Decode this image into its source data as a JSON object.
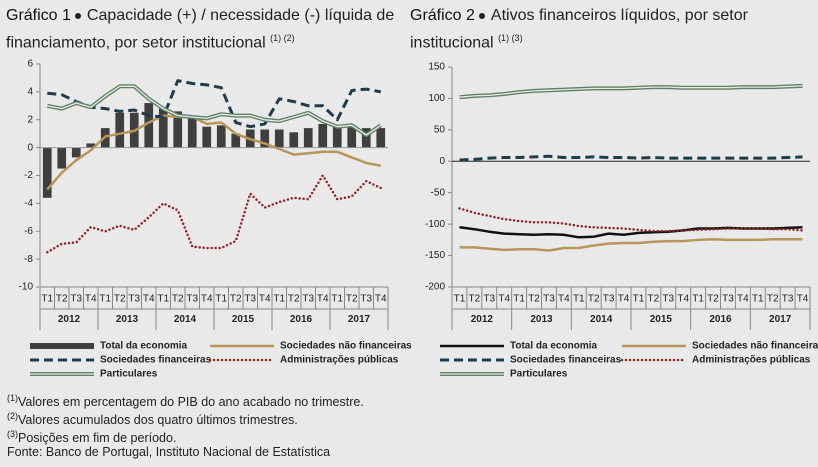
{
  "chart_data": [
    {
      "type": "combo",
      "title": "Gráfico 1",
      "subtitle": "Capacidade (+) / necessidade (-) líquida de financiamento, por setor institucional",
      "title_refs": "(1) (2)",
      "categories": [
        "T1",
        "T2",
        "T3",
        "T4",
        "T1",
        "T2",
        "T3",
        "T4",
        "T1",
        "T2",
        "T3",
        "T4",
        "T1",
        "T2",
        "T3",
        "T4",
        "T1",
        "T2",
        "T3",
        "T4",
        "T1",
        "T2",
        "T3",
        "T4"
      ],
      "years": [
        "2012",
        "2013",
        "2014",
        "2015",
        "2016",
        "2017"
      ],
      "ylim": [
        -10,
        6
      ],
      "yticks": [
        6,
        4,
        2,
        0,
        -2,
        -4,
        -6,
        -8,
        -10
      ],
      "series": [
        {
          "name": "Total da economia",
          "kind": "bar",
          "color": "#3f3f3f",
          "values": [
            -3.6,
            -1.5,
            -0.7,
            0.3,
            1.4,
            2.5,
            2.5,
            3.2,
            2.8,
            2.6,
            2.1,
            1.5,
            1.6,
            1.0,
            1.3,
            1.3,
            1.3,
            1.1,
            1.4,
            1.7,
            1.6,
            1.6,
            1.4,
            1.4
          ]
        },
        {
          "name": "Sociedades não financeiras",
          "kind": "line",
          "style": "solid",
          "color": "#b8965a",
          "values": [
            -3.0,
            -1.8,
            -0.9,
            -0.2,
            0.8,
            1.0,
            1.2,
            1.8,
            2.3,
            2.2,
            2.2,
            1.7,
            1.8,
            1.0,
            0.6,
            0.3,
            -0.1,
            -0.5,
            -0.4,
            -0.3,
            -0.3,
            -0.7,
            -1.1,
            -1.3
          ]
        },
        {
          "name": "Sociedades financeiras",
          "kind": "line",
          "style": "dashed",
          "color": "#1e3d4c",
          "values": [
            3.9,
            3.8,
            3.3,
            2.9,
            2.8,
            2.6,
            2.7,
            2.3,
            2.2,
            4.8,
            4.6,
            4.5,
            4.3,
            1.8,
            1.5,
            1.7,
            3.5,
            3.3,
            3.0,
            3.0,
            2.0,
            4.1,
            4.2,
            4.0
          ]
        },
        {
          "name": "Administrações públicas",
          "kind": "line",
          "style": "dotted",
          "color": "#8e2424",
          "values": [
            -7.5,
            -6.9,
            -6.8,
            -5.7,
            -6.0,
            -5.6,
            -5.9,
            -5.0,
            -4.0,
            -4.5,
            -7.1,
            -7.2,
            -7.2,
            -6.7,
            -3.3,
            -4.3,
            -3.9,
            -3.6,
            -3.7,
            -2.0,
            -3.7,
            -3.5,
            -2.4,
            -2.9
          ]
        },
        {
          "name": "Particulares",
          "kind": "line",
          "style": "double",
          "color": "#5f7f68",
          "values": [
            3.0,
            2.8,
            3.2,
            2.9,
            3.7,
            4.4,
            4.4,
            3.5,
            2.8,
            2.3,
            2.2,
            2.1,
            2.4,
            2.3,
            2.3,
            2.0,
            1.9,
            2.2,
            2.5,
            1.9,
            1.5,
            1.6,
            0.9,
            1.6
          ]
        }
      ]
    },
    {
      "type": "line",
      "title": "Gráfico 2",
      "subtitle": "Ativos financeiros líquidos, por setor institucional",
      "title_refs": "(1) (3)",
      "categories": [
        "T1",
        "T2",
        "T3",
        "T4",
        "T1",
        "T2",
        "T3",
        "T4",
        "T1",
        "T2",
        "T3",
        "T4",
        "T1",
        "T2",
        "T3",
        "T4",
        "T1",
        "T2",
        "T3",
        "T4",
        "T1",
        "T2",
        "T3",
        "T4"
      ],
      "years": [
        "2012",
        "2013",
        "2014",
        "2015",
        "2016",
        "2017"
      ],
      "ylim": [
        -200,
        150
      ],
      "yticks": [
        150,
        100,
        50,
        0,
        -50,
        -100,
        -150,
        -200
      ],
      "series": [
        {
          "name": "Total da economia",
          "kind": "line",
          "style": "solid",
          "color": "#111111",
          "values": [
            -105,
            -108,
            -112,
            -115,
            -116,
            -117,
            -116,
            -117,
            -121,
            -120,
            -115,
            -117,
            -114,
            -113,
            -112,
            -110,
            -107,
            -107,
            -106,
            -107,
            -107,
            -107,
            -106,
            -105
          ]
        },
        {
          "name": "Sociedades não financeiras",
          "kind": "line",
          "style": "solid",
          "color": "#b8965a",
          "values": [
            -137,
            -137,
            -139,
            -141,
            -140,
            -140,
            -142,
            -138,
            -138,
            -134,
            -131,
            -130,
            -130,
            -128,
            -127,
            -127,
            -125,
            -124,
            -125,
            -125,
            -125,
            -124,
            -124,
            -124
          ]
        },
        {
          "name": "Sociedades financeiras",
          "kind": "line",
          "style": "dashed",
          "color": "#1e3d4c",
          "values": [
            2,
            3,
            5,
            6,
            6,
            7,
            8,
            6,
            6,
            7,
            6,
            6,
            5,
            6,
            5,
            5,
            5,
            5,
            5,
            5,
            5,
            5,
            6,
            7
          ]
        },
        {
          "name": "Administrações públicas",
          "kind": "line",
          "style": "dotted",
          "color": "#8e2424",
          "values": [
            -75,
            -82,
            -87,
            -92,
            -95,
            -97,
            -97,
            -99,
            -103,
            -105,
            -106,
            -107,
            -109,
            -111,
            -111,
            -110,
            -109,
            -108,
            -107,
            -107,
            -107,
            -108,
            -108,
            -110
          ]
        },
        {
          "name": "Particulares",
          "kind": "line",
          "style": "double",
          "color": "#5f7f68",
          "values": [
            102,
            104,
            105,
            107,
            110,
            112,
            113,
            114,
            115,
            116,
            116,
            116,
            117,
            118,
            118,
            117,
            117,
            117,
            117,
            118,
            118,
            118,
            119,
            120
          ]
        }
      ]
    }
  ],
  "notes": [
    {
      "ref": "(1)",
      "text": "Valores em percentagem do PIB do ano acabado no trimestre."
    },
    {
      "ref": "(2)",
      "text": "Valores acumulados dos quatro últimos trimestres."
    },
    {
      "ref": "(3)",
      "text": "Posições em fim de período."
    }
  ],
  "source": "Fonte: Banco de Portugal, Instituto Nacional de Estatística"
}
